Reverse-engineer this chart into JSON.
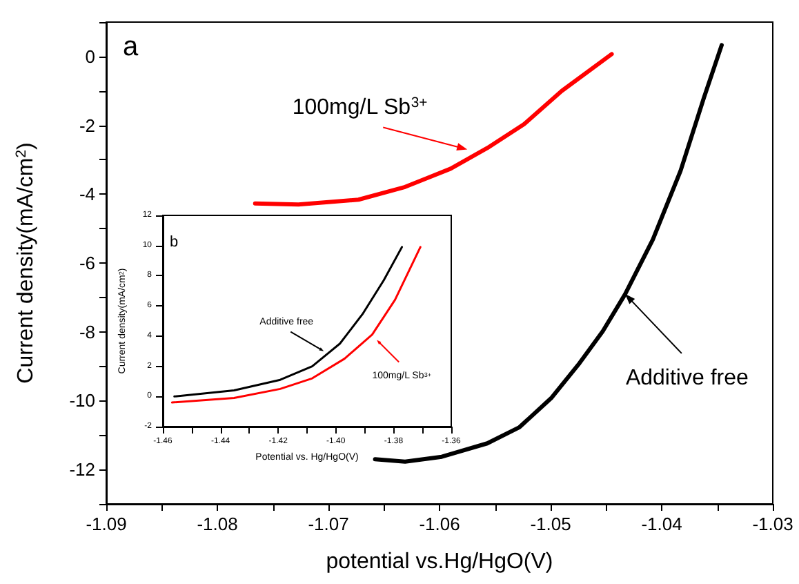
{
  "chart_data": [
    {
      "type": "line",
      "xlabel": "potential vs.Hg/HgO(V)",
      "ylabel": "Current density(mA/cm$^{2}$)",
      "marker": "none",
      "xlim": [
        -1.09,
        -1.03
      ],
      "xticks": [
        -1.09,
        {
          "value": -1.085,
          "label": null
        },
        -1.08,
        {
          "value": -1.075,
          "label": null
        },
        -1.07,
        {
          "value": -1.065,
          "label": null
        },
        -1.06,
        {
          "value": -1.055,
          "label": null
        },
        -1.05,
        {
          "value": -1.045,
          "label": null
        },
        -1.04,
        {
          "value": -1.035,
          "label": null
        },
        -1.03
      ],
      "ylim": [
        -13,
        1
      ],
      "yticks": [
        {
          "value": -13,
          "label": null
        },
        -12,
        {
          "value": -11,
          "label": null
        },
        -10,
        {
          "value": -9,
          "label": null
        },
        -8,
        {
          "value": -7,
          "label": null
        },
        -6,
        {
          "value": -5,
          "label": null
        },
        -4,
        {
          "value": -3,
          "label": null
        },
        -2,
        {
          "value": -1,
          "label": null
        },
        0,
        {
          "value": 1,
          "label": null
        }
      ],
      "series": [
        {
          "color": "#ff0000",
          "x": [
            -1.0766,
            -1.0727,
            -1.0673,
            -1.0631,
            -1.059,
            -1.0557,
            -1.0524,
            -1.049,
            -1.0445
          ],
          "values": [
            -4.27,
            -4.3,
            -4.16,
            -3.79,
            -3.26,
            -2.66,
            -1.97,
            -1.0,
            0.07
          ]
        },
        {
          "color": "#000000",
          "x": [
            -1.0658,
            -1.0631,
            -1.0598,
            -1.0557,
            -1.0528,
            -1.0499,
            -1.0474,
            -1.0453,
            -1.0433,
            -1.0408,
            -1.0383,
            -1.0362,
            -1.0346
          ],
          "values": [
            -11.7,
            -11.77,
            -11.63,
            -11.24,
            -10.77,
            -9.91,
            -8.91,
            -7.98,
            -6.91,
            -5.32,
            -3.32,
            -1.2,
            0.33
          ]
        }
      ],
      "annotations": [
        "a",
        {
          "text": "100mg/L Sb$^{3+}$",
          "x": -1.0575,
          "y": -2.7
        },
        {
          "text": "Additive free",
          "x": -1.0433,
          "y": -6.9
        }
      ]
    },
    {
      "type": "line",
      "xlabel": "Potential vs. Hg/HgO(V)",
      "ylabel": "Current density(mA/cm$^{2}$)",
      "marker": "none",
      "xlim": [
        -1.46,
        -1.36
      ],
      "xticks": [
        -1.46,
        {
          "value": -1.45,
          "label": null
        },
        -1.44,
        {
          "value": -1.43,
          "label": null
        },
        -1.42,
        {
          "value": -1.41,
          "label": null
        },
        {
          "value": -1.4,
          "label": "-1.40"
        },
        {
          "value": -1.39,
          "label": null
        },
        -1.38,
        {
          "value": -1.37,
          "label": null
        },
        -1.36
      ],
      "ylim": [
        -2,
        12
      ],
      "yticks": [
        -2,
        0,
        2,
        4,
        6,
        8,
        10,
        12
      ],
      "series": [
        {
          "color": "#000000",
          "x": [
            -1.456,
            -1.4353,
            -1.4193,
            -1.4082,
            -1.3986,
            -1.3906,
            -1.3834,
            -1.3771
          ],
          "values": [
            0.0,
            0.4,
            1.1,
            2.0,
            3.5,
            5.5,
            7.7,
            9.9
          ]
        },
        {
          "color": "#ff0000",
          "x": [
            -1.4568,
            -1.4353,
            -1.4193,
            -1.4082,
            -1.397,
            -1.3874,
            -1.3795,
            -1.3707
          ],
          "values": [
            -0.4,
            -0.1,
            0.5,
            1.2,
            2.5,
            4.1,
            6.4,
            9.9
          ]
        }
      ],
      "annotations": [
        "b",
        {
          "text": "Additive free",
          "x": -1.4042,
          "y": 3.0
        },
        {
          "text": "100mg/L Sb$^{3+}$",
          "x": -1.3858,
          "y": 3.74
        }
      ]
    }
  ]
}
